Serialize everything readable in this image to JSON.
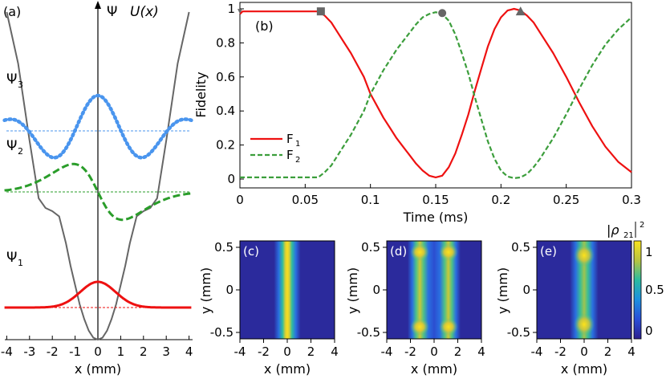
{
  "chart_data": [
    {
      "panel": "(a)",
      "type": "line",
      "title": "",
      "xlabel": "x (mm)",
      "ylabel": "Ψ",
      "potential_label": "U(x)",
      "xlim": [
        -4.3,
        4.3
      ],
      "x_ticks": [
        "-4",
        "-3",
        "-2",
        "-1",
        "0",
        "1",
        "2",
        "3",
        "4"
      ],
      "series": [
        {
          "name": "U(x)",
          "color": "#666666",
          "style": "solid",
          "x": [
            -4,
            -3.5,
            -3,
            -2.6,
            -2.3,
            -2,
            -1.7,
            -1.4,
            -1.2,
            -1,
            -0.8,
            -0.6,
            -0.4,
            -0.2,
            0,
            0.2,
            0.4,
            0.6,
            0.8,
            1,
            1.2,
            1.4,
            1.7,
            2,
            2.3,
            2.6,
            3,
            3.5,
            4
          ],
          "y": [
            5.1,
            4.3,
            3.1,
            2.2,
            2.05,
            2.0,
            1.92,
            1.5,
            1.15,
            0.85,
            0.55,
            0.32,
            0.14,
            0.03,
            0,
            0.03,
            0.14,
            0.32,
            0.55,
            0.85,
            1.15,
            1.5,
            1.92,
            2.0,
            2.05,
            2.2,
            3.1,
            4.3,
            5.1
          ]
        },
        {
          "name": "Ψ1",
          "label": "Ψ",
          "subscript": "1",
          "color": "#ee1111",
          "style": "solid",
          "baseline": 0.5,
          "amplitude": 0.4
        },
        {
          "name": "Ψ2",
          "label": "Ψ",
          "subscript": "2",
          "color": "#2a9d2a",
          "style": "dashed",
          "baseline": 2.3,
          "amplitude": 0.55
        },
        {
          "name": "Ψ3",
          "label": "Ψ",
          "subscript": "3",
          "color": "#4a95ee",
          "style": "dotted",
          "baseline": 3.25,
          "amplitude": 0.55
        }
      ]
    },
    {
      "panel": "(b)",
      "type": "line",
      "xlabel": "Time (ms)",
      "ylabel": "Fidelity",
      "xlim": [
        0,
        0.3
      ],
      "ylim": [
        0,
        1
      ],
      "x_ticks": [
        "0",
        "0.05",
        "0.1",
        "0.15",
        "0.2",
        "0.25",
        "0.3"
      ],
      "y_ticks": [
        "0",
        "0.2",
        "0.4",
        "0.6",
        "0.8",
        "1"
      ],
      "legend": {
        "position": "left",
        "entries": [
          {
            "label": "F",
            "subscript": "1"
          },
          {
            "label": "F",
            "subscript": "2"
          }
        ]
      },
      "markers": [
        {
          "shape": "square",
          "t": 0.062,
          "f": 0.985
        },
        {
          "shape": "circle",
          "t": 0.155,
          "f": 0.975
        },
        {
          "shape": "triangle",
          "t": 0.215,
          "f": 0.985
        }
      ],
      "series": [
        {
          "name": "F1",
          "color": "#ee1111",
          "style": "solid",
          "x": [
            0,
            0.002,
            0.01,
            0.02,
            0.03,
            0.04,
            0.05,
            0.06,
            0.065,
            0.07,
            0.075,
            0.08,
            0.085,
            0.09,
            0.095,
            0.1,
            0.105,
            0.11,
            0.115,
            0.12,
            0.125,
            0.13,
            0.135,
            0.14,
            0.145,
            0.15,
            0.155,
            0.16,
            0.165,
            0.17,
            0.175,
            0.18,
            0.185,
            0.19,
            0.195,
            0.2,
            0.205,
            0.21,
            0.215,
            0.22,
            0.225,
            0.23,
            0.24,
            0.25,
            0.26,
            0.27,
            0.28,
            0.29,
            0.3
          ],
          "y": [
            0.97,
            0.985,
            0.985,
            0.985,
            0.985,
            0.985,
            0.985,
            0.985,
            0.96,
            0.92,
            0.86,
            0.8,
            0.74,
            0.67,
            0.6,
            0.5,
            0.43,
            0.36,
            0.3,
            0.24,
            0.19,
            0.14,
            0.09,
            0.05,
            0.02,
            0.01,
            0.02,
            0.07,
            0.15,
            0.26,
            0.38,
            0.52,
            0.65,
            0.78,
            0.88,
            0.95,
            0.99,
            1.0,
            0.99,
            0.96,
            0.92,
            0.86,
            0.74,
            0.6,
            0.45,
            0.31,
            0.19,
            0.1,
            0.04
          ]
        },
        {
          "name": "F2",
          "color": "#3c9e3c",
          "style": "dashed",
          "x": [
            0,
            0.01,
            0.02,
            0.03,
            0.04,
            0.05,
            0.06,
            0.065,
            0.07,
            0.075,
            0.08,
            0.085,
            0.09,
            0.095,
            0.1,
            0.105,
            0.11,
            0.115,
            0.12,
            0.125,
            0.13,
            0.135,
            0.14,
            0.145,
            0.15,
            0.155,
            0.16,
            0.165,
            0.17,
            0.175,
            0.18,
            0.185,
            0.19,
            0.195,
            0.2,
            0.205,
            0.21,
            0.215,
            0.22,
            0.225,
            0.23,
            0.24,
            0.25,
            0.26,
            0.27,
            0.28,
            0.29,
            0.3
          ],
          "y": [
            0.01,
            0.01,
            0.01,
            0.01,
            0.01,
            0.01,
            0.01,
            0.04,
            0.08,
            0.14,
            0.2,
            0.26,
            0.33,
            0.4,
            0.5,
            0.57,
            0.64,
            0.7,
            0.76,
            0.81,
            0.86,
            0.91,
            0.95,
            0.97,
            0.98,
            0.97,
            0.93,
            0.85,
            0.74,
            0.62,
            0.48,
            0.35,
            0.22,
            0.12,
            0.05,
            0.015,
            0.005,
            0.01,
            0.03,
            0.07,
            0.12,
            0.24,
            0.38,
            0.53,
            0.67,
            0.79,
            0.88,
            0.95
          ]
        }
      ]
    },
    {
      "panel": "(c)",
      "type": "heatmap",
      "xlabel": "x (mm)",
      "ylabel": "y (mm)",
      "xlim": [
        -4,
        4
      ],
      "ylim": [
        -0.5,
        0.5
      ],
      "x_ticks": [
        "-4",
        "-2",
        "0",
        "2",
        "4"
      ],
      "y_ticks": [
        "-0.5",
        "0",
        "0.5"
      ],
      "description": "single vertical bright stripe centered at x = 0"
    },
    {
      "panel": "(d)",
      "type": "heatmap",
      "xlabel": "x (mm)",
      "ylabel": "y (mm)",
      "xlim": [
        -4,
        4
      ],
      "ylim": [
        -0.5,
        0.5
      ],
      "x_ticks": [
        "-4",
        "-2",
        "0",
        "2",
        "4"
      ],
      "y_ticks": [
        "-0.5",
        "0",
        "0.5"
      ],
      "description": "two vertical stripes at x ≈ -1.2 and x ≈ 1.2 with bright end caps"
    },
    {
      "panel": "(e)",
      "type": "heatmap",
      "xlabel": "x (mm)",
      "ylabel": "y (mm)",
      "xlim": [
        -4,
        4
      ],
      "ylim": [
        -0.5,
        0.5
      ],
      "x_ticks": [
        "-4",
        "-2",
        "0",
        "2",
        "4"
      ],
      "y_ticks": [
        "-0.5",
        "0",
        "0.5"
      ],
      "description": "single central stripe with bright blobs near y = ±0.45",
      "colorbar": {
        "label": "|ρ21|",
        "superscript": "2",
        "ticks": [
          "0",
          "0.5",
          "1"
        ],
        "range": [
          0,
          1
        ]
      }
    }
  ],
  "labels": {
    "a": "(a)",
    "b": "(b)",
    "c": "(c)",
    "d": "(d)",
    "e": "(e)",
    "psi_axis": "Ψ",
    "u_axis": "U(x)",
    "colorbar_main": "|ρ",
    "colorbar_sub": "21",
    "colorbar_sup": "2"
  }
}
